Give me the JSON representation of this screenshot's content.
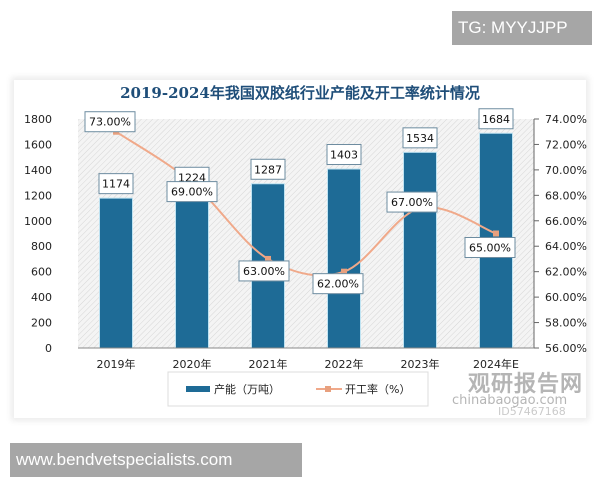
{
  "watermarks": {
    "top_tag": "TG: MYYJJPP",
    "bottom_tag": "www.bendvetspecialists.com",
    "brand_cn": "观研报告网",
    "brand_en": "chinabaogao.com",
    "image_id": "ID57467168"
  },
  "colors": {
    "bar": "#1e6b96",
    "bar_edge": "#bfe3f2",
    "line": "#f0a98a",
    "marker": "#e8a07e",
    "title": "#1f4e79"
  },
  "chart_data": {
    "type": "bar",
    "title": "2019-2024年我国双胶纸行业产能及开工率统计情况",
    "categories": [
      "2019年",
      "2020年",
      "2021年",
      "2022年",
      "2023年",
      "2024年E"
    ],
    "series": [
      {
        "name": "产能（万吨）",
        "type": "bar",
        "axis": "left",
        "values": [
          1174,
          1224,
          1287,
          1403,
          1534,
          1684
        ],
        "labels": [
          "1174",
          "1224",
          "1287",
          "1403",
          "1534",
          "1684"
        ]
      },
      {
        "name": "开工率（%）",
        "type": "line",
        "axis": "right",
        "values": [
          73,
          69,
          63,
          62,
          67,
          65
        ],
        "labels": [
          "73.00%",
          "69.00%",
          "63.00%",
          "62.00%",
          "67.00%",
          "65.00%"
        ]
      }
    ],
    "left_axis": {
      "ylim": [
        0,
        1800
      ],
      "ticks": [
        "0",
        "200",
        "400",
        "600",
        "800",
        "1000",
        "1200",
        "1400",
        "1600",
        "1800"
      ]
    },
    "right_axis": {
      "ylim": [
        56,
        74
      ],
      "ticks": [
        "56.00%",
        "58.00%",
        "60.00%",
        "62.00%",
        "64.00%",
        "66.00%",
        "68.00%",
        "70.00%",
        "72.00%",
        "74.00%"
      ]
    },
    "xlabel": "",
    "ylabel": "",
    "grid": false,
    "legend_position": "bottom"
  }
}
